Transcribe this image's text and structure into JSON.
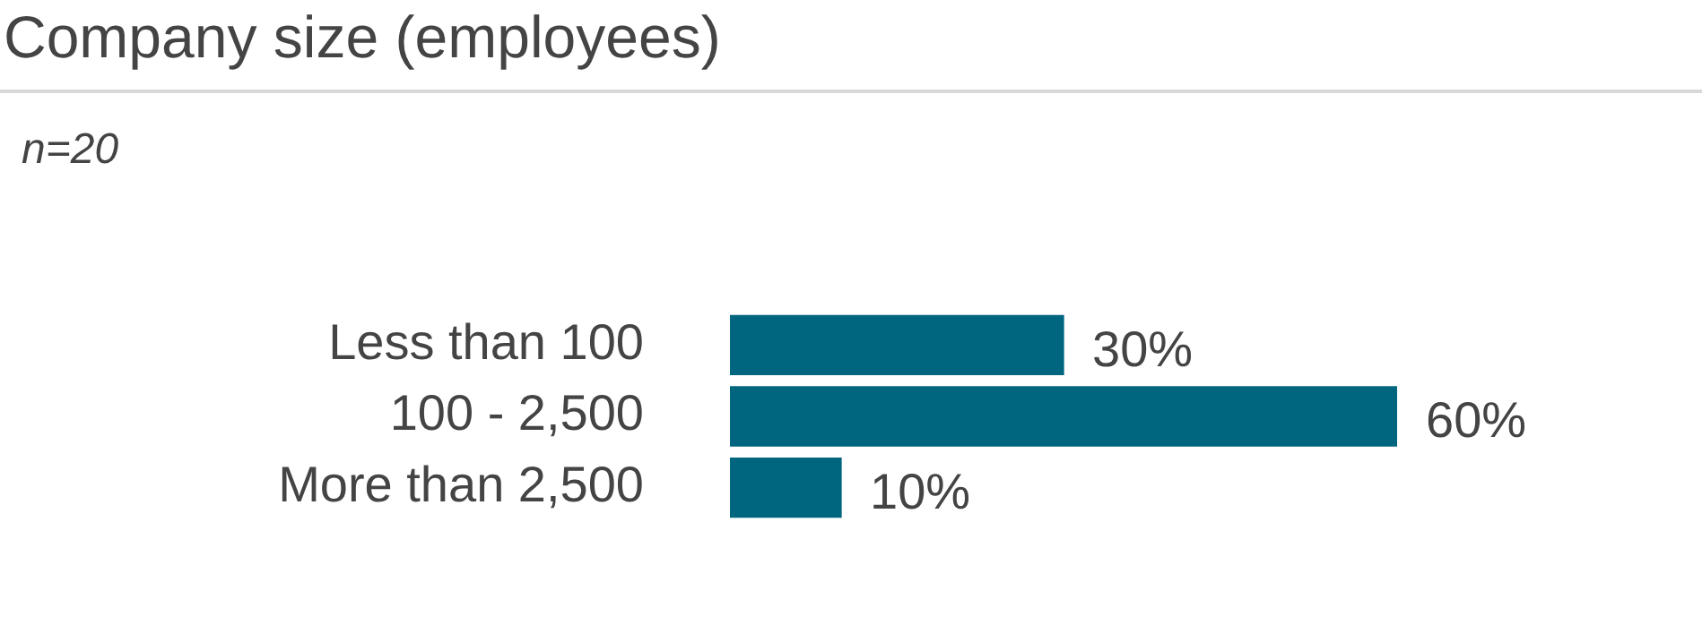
{
  "chart_data": {
    "type": "bar",
    "orientation": "horizontal",
    "title": "Company size (employees)",
    "subtitle": "n=20",
    "categories": [
      "Less than 100",
      "100 - 2,500",
      "More than 2,500"
    ],
    "values": [
      30,
      60,
      10
    ],
    "value_labels": [
      "30%",
      "60%",
      "10%"
    ],
    "color": "#006680",
    "tick_labels": "y",
    "grid": false,
    "legend": false
  }
}
